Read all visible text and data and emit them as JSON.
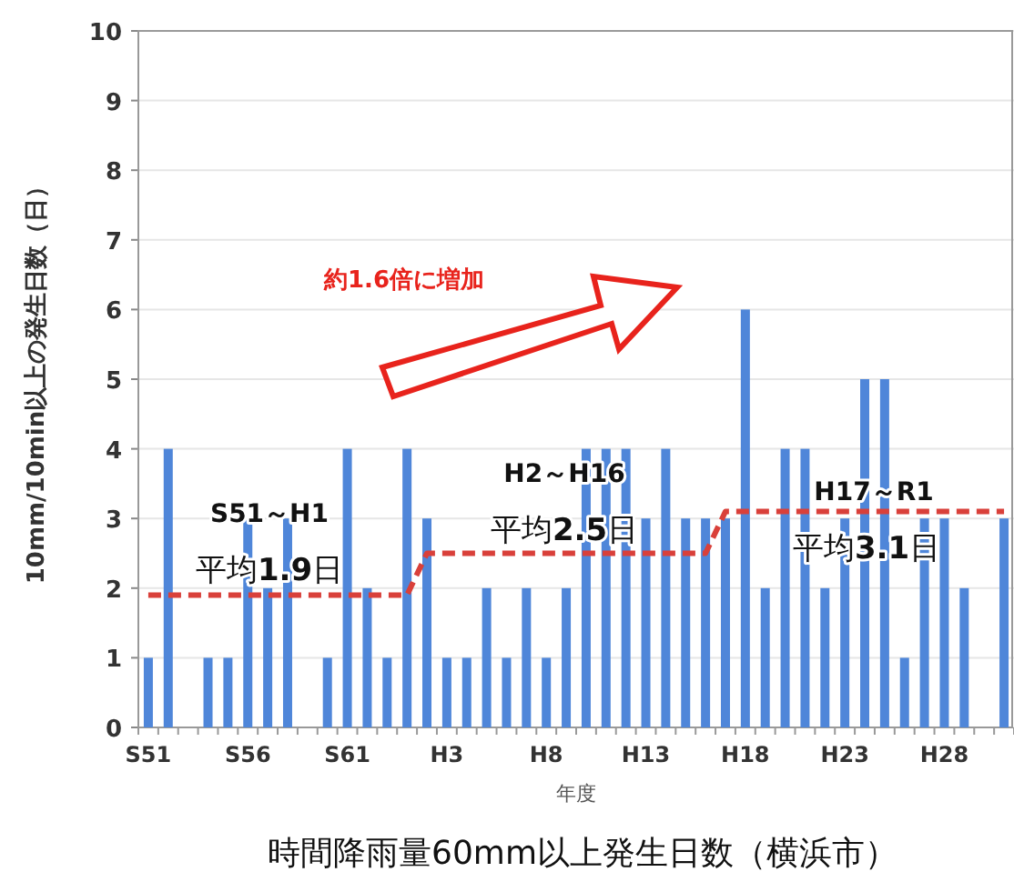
{
  "chart_data": {
    "type": "bar",
    "title": "時間降雨量60mm以上発生日数（横浜市）",
    "xlabel": "年度",
    "ylabel": "10mm/10min以上の発生日数（日）",
    "categories": [
      "S51",
      null,
      null,
      null,
      null,
      "S56",
      null,
      null,
      null,
      null,
      "S61",
      null,
      null,
      null,
      null,
      "H3",
      null,
      null,
      null,
      null,
      "H8",
      null,
      null,
      null,
      null,
      "H13",
      null,
      null,
      null,
      null,
      "H18",
      null,
      null,
      null,
      null,
      "H23",
      null,
      null,
      null,
      null,
      "H28",
      null,
      null,
      null
    ],
    "series": [
      {
        "color": "#4f86d9",
        "values": [
          1,
          4,
          0,
          1,
          1,
          3,
          2,
          3,
          0,
          1,
          4,
          2,
          1,
          4,
          3,
          1,
          1,
          2,
          1,
          2,
          1,
          2,
          4,
          4,
          4,
          3,
          4,
          3,
          3,
          3,
          6,
          2,
          4,
          4,
          2,
          3,
          5,
          5,
          1,
          3,
          3,
          2,
          0,
          3
        ]
      },
      {
        "type": "line",
        "color": "#d9403a",
        "line_style": "dashed",
        "marker": "none",
        "values": [
          1.9,
          1.9,
          1.9,
          1.9,
          1.9,
          1.9,
          1.9,
          1.9,
          1.9,
          1.9,
          1.9,
          1.9,
          1.9,
          1.9,
          2.5,
          2.5,
          2.5,
          2.5,
          2.5,
          2.5,
          2.5,
          2.5,
          2.5,
          2.5,
          2.5,
          2.5,
          2.5,
          2.5,
          2.5,
          3.1,
          3.1,
          3.1,
          3.1,
          3.1,
          3.1,
          3.1,
          3.1,
          3.1,
          3.1,
          3.1,
          3.1,
          3.1,
          3.1,
          3.1
        ]
      }
    ],
    "annotations": [
      "約1.6倍に増加",
      "S51～H1",
      "平均**1.9**日",
      "H2～H16",
      "平均**2.5**日",
      "H17～R1",
      "平均**3.1**日"
    ],
    "ylim": [
      0,
      10
    ],
    "yticks": [
      0,
      1,
      2,
      3,
      4,
      5,
      6,
      7,
      8,
      9,
      10
    ],
    "grid": "y"
  }
}
